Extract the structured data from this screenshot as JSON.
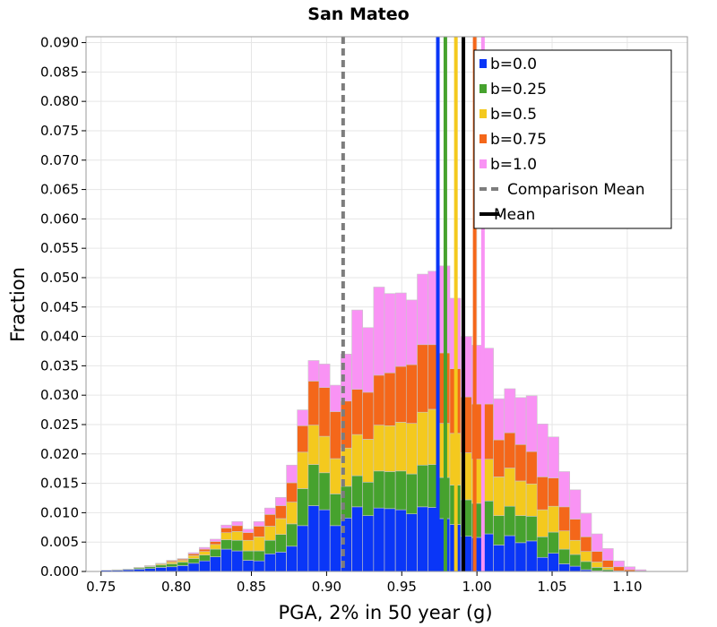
{
  "chart_data": {
    "type": "bar",
    "stacked": true,
    "title": "San Mateo",
    "xlabel": "PGA, 2% in 50 year (g)",
    "ylabel": "Fraction",
    "xlim": [
      0.74,
      1.14
    ],
    "ylim": [
      0.0,
      0.091
    ],
    "xticks": [
      "0.75",
      "0.80",
      "0.85",
      "0.90",
      "0.95",
      "1.00",
      "1.05",
      "1.10"
    ],
    "yticks": [
      "0.000",
      "0.005",
      "0.010",
      "0.015",
      "0.020",
      "0.025",
      "0.030",
      "0.035",
      "0.040",
      "0.045",
      "0.050",
      "0.055",
      "0.060",
      "0.065",
      "0.070",
      "0.075",
      "0.080",
      "0.085",
      "0.090"
    ],
    "grid": true,
    "legend_position": "top-right",
    "bin_width": 0.00725,
    "x": [
      0.7536,
      0.7609,
      0.7681,
      0.7754,
      0.7826,
      0.7899,
      0.7971,
      0.8044,
      0.8116,
      0.8189,
      0.8261,
      0.8334,
      0.8406,
      0.8479,
      0.8551,
      0.8624,
      0.8696,
      0.8769,
      0.8841,
      0.8914,
      0.8986,
      0.9059,
      0.9131,
      0.9204,
      0.9276,
      0.9349,
      0.9421,
      0.9494,
      0.9566,
      0.9639,
      0.9711,
      0.9784,
      0.9856,
      0.9929,
      1.0001,
      1.0074,
      1.0146,
      1.0219,
      1.0291,
      1.0364,
      1.0436,
      1.0509,
      1.0581,
      1.0654,
      1.0726,
      1.0799,
      1.0871,
      1.0944,
      1.1016,
      1.1089,
      1.1161,
      1.1234,
      1.1306,
      1.1379
    ],
    "series": [
      {
        "name": "b=0.0",
        "color": "#0a36f7",
        "values": [
          0.0002,
          0.0002,
          0.0003,
          0.0004,
          0.0005,
          0.0007,
          0.0008,
          0.001,
          0.0014,
          0.0018,
          0.0025,
          0.0038,
          0.0035,
          0.0019,
          0.0018,
          0.003,
          0.0033,
          0.0043,
          0.0078,
          0.0112,
          0.0105,
          0.0078,
          0.0091,
          0.011,
          0.0095,
          0.0108,
          0.0107,
          0.0105,
          0.0098,
          0.011,
          0.0109,
          0.009,
          0.008,
          0.006,
          0.0058,
          0.0064,
          0.0045,
          0.0061,
          0.0049,
          0.0052,
          0.0024,
          0.0031,
          0.0013,
          0.0009,
          0.0003,
          0.0001,
          0.0,
          0.0,
          0.0,
          0.0,
          0.0,
          0.0,
          0.0,
          0.0
        ]
      },
      {
        "name": "b=0.25",
        "color": "#46a22e",
        "values": [
          0.0,
          0.0001,
          0.0001,
          0.0002,
          0.0003,
          0.0004,
          0.0005,
          0.0006,
          0.0008,
          0.001,
          0.0013,
          0.0016,
          0.0018,
          0.0016,
          0.0017,
          0.0023,
          0.003,
          0.0038,
          0.0063,
          0.007,
          0.0063,
          0.0054,
          0.0054,
          0.0053,
          0.0057,
          0.0063,
          0.0063,
          0.0066,
          0.0068,
          0.0071,
          0.0073,
          0.007,
          0.0067,
          0.0062,
          0.0058,
          0.0056,
          0.005,
          0.005,
          0.0046,
          0.0042,
          0.0035,
          0.0036,
          0.0025,
          0.002,
          0.0014,
          0.0006,
          0.0003,
          0.0,
          0.0,
          0.0,
          0.0,
          0.0,
          0.0,
          0.0
        ]
      },
      {
        "name": "b=0.5",
        "color": "#f4c91e",
        "values": [
          0.0,
          0.0,
          0.0,
          0.0001,
          0.0001,
          0.0002,
          0.0003,
          0.0003,
          0.0005,
          0.0006,
          0.0008,
          0.0012,
          0.0015,
          0.0018,
          0.0024,
          0.0024,
          0.0027,
          0.0037,
          0.0062,
          0.0067,
          0.0062,
          0.006,
          0.0065,
          0.007,
          0.0073,
          0.0078,
          0.0078,
          0.0083,
          0.0086,
          0.009,
          0.0094,
          0.0092,
          0.0088,
          0.008,
          0.0075,
          0.0071,
          0.0066,
          0.0065,
          0.0059,
          0.0055,
          0.0046,
          0.0044,
          0.0031,
          0.0024,
          0.0017,
          0.0009,
          0.0004,
          0.0001,
          0.0,
          0.0,
          0.0,
          0.0,
          0.0,
          0.0
        ]
      },
      {
        "name": "b=0.75",
        "color": "#f4671a",
        "values": [
          0.0,
          0.0,
          0.0,
          0.0,
          0.0001,
          0.0001,
          0.0002,
          0.0002,
          0.0003,
          0.0004,
          0.0005,
          0.0008,
          0.001,
          0.0013,
          0.0018,
          0.002,
          0.0022,
          0.0033,
          0.0045,
          0.0075,
          0.0083,
          0.008,
          0.008,
          0.0077,
          0.008,
          0.0085,
          0.009,
          0.0095,
          0.01,
          0.0115,
          0.011,
          0.012,
          0.011,
          0.0095,
          0.0094,
          0.0094,
          0.0063,
          0.006,
          0.0062,
          0.0055,
          0.0056,
          0.0048,
          0.0041,
          0.0036,
          0.0025,
          0.0018,
          0.0012,
          0.0007,
          0.0003,
          0.0001,
          0.0,
          0.0,
          0.0,
          0.0
        ]
      },
      {
        "name": "b=1.0",
        "color": "#f993f4",
        "values": [
          0.0,
          0.0,
          0.0,
          0.0,
          0.0,
          0.0,
          0.0001,
          0.0001,
          0.0002,
          0.0003,
          0.0004,
          0.0005,
          0.0007,
          0.0006,
          0.0008,
          0.0011,
          0.0014,
          0.003,
          0.0027,
          0.0035,
          0.004,
          0.0045,
          0.008,
          0.0135,
          0.011,
          0.015,
          0.0135,
          0.0125,
          0.011,
          0.012,
          0.0125,
          0.0148,
          0.012,
          0.0103,
          0.01,
          0.0095,
          0.007,
          0.0075,
          0.008,
          0.0095,
          0.009,
          0.007,
          0.006,
          0.005,
          0.004,
          0.003,
          0.002,
          0.001,
          0.0005,
          0.0002,
          0.0,
          0.0,
          0.0,
          0.0
        ]
      }
    ],
    "vlines": [
      {
        "name": "Comparison Mean",
        "x": 0.911,
        "color": "#7d7d7d",
        "style": "dashed"
      },
      {
        "name": "Mean",
        "x": 0.991,
        "color": "#000000",
        "style": "solid"
      },
      {
        "name": "b=0.0 mean",
        "x": 0.974,
        "color": "#0a36f7",
        "style": "solid"
      },
      {
        "name": "b=0.25 mean",
        "x": 0.979,
        "color": "#46a22e",
        "style": "solid"
      },
      {
        "name": "b=0.5 mean",
        "x": 0.986,
        "color": "#f4c91e",
        "style": "solid"
      },
      {
        "name": "b=0.75 mean",
        "x": 0.9985,
        "color": "#f4671a",
        "style": "solid"
      },
      {
        "name": "b=1.0 mean",
        "x": 1.004,
        "color": "#f993f4",
        "style": "solid"
      }
    ],
    "legend": [
      {
        "label": "b=0.0",
        "color": "#0a36f7",
        "kind": "box"
      },
      {
        "label": "b=0.25",
        "color": "#46a22e",
        "kind": "box"
      },
      {
        "label": "b=0.5",
        "color": "#f4c91e",
        "kind": "box"
      },
      {
        "label": "b=0.75",
        "color": "#f4671a",
        "kind": "box"
      },
      {
        "label": "b=1.0",
        "color": "#f993f4",
        "kind": "box"
      },
      {
        "label": "Comparison Mean",
        "color": "#7d7d7d",
        "kind": "dashed"
      },
      {
        "label": "Mean",
        "color": "#000000",
        "kind": "solid"
      }
    ]
  }
}
